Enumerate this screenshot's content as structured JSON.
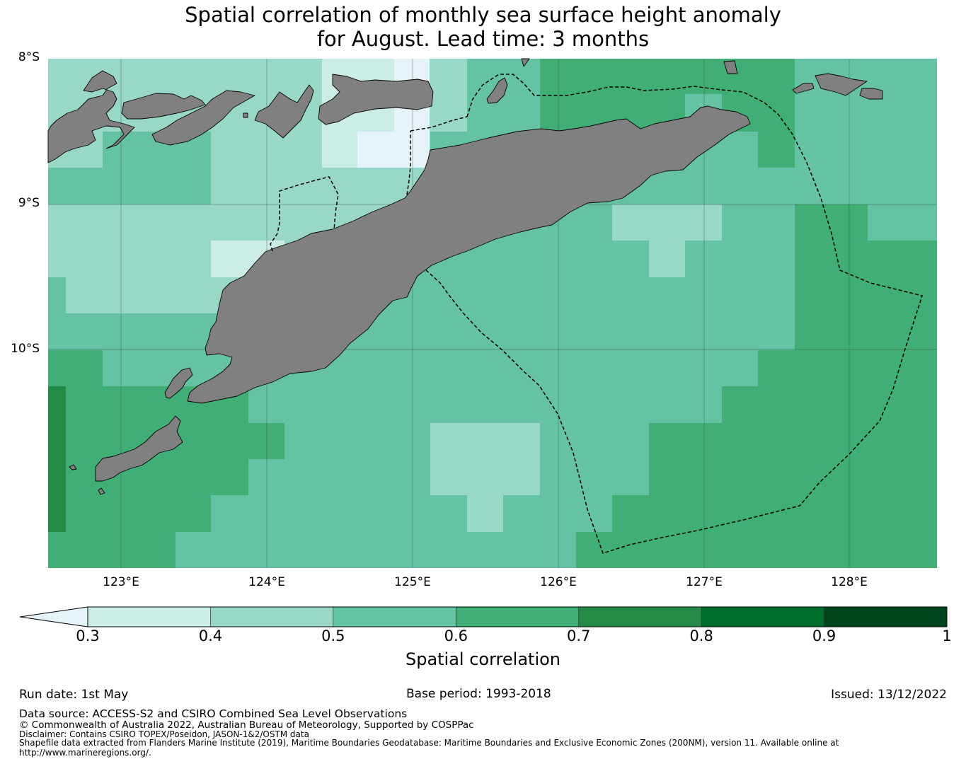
{
  "title": {
    "line1": "Spatial correlation of monthly sea surface height anomaly",
    "line2": "for August. Lead time: 3 months"
  },
  "map": {
    "latitude_labels": [
      "8°S",
      "9°S",
      "10°S"
    ],
    "longitude_labels": [
      "123°E",
      "124°E",
      "125°E",
      "126°E",
      "127°E",
      "128°E"
    ],
    "land_color": "#808080",
    "eez_boundary_style": "dashed black line"
  },
  "colorbar": {
    "ticks": [
      "0.3",
      "0.4",
      "0.5",
      "0.6",
      "0.7",
      "0.8",
      "0.9",
      "1"
    ],
    "label": "Spatial correlation",
    "under_color": "#e5f4f9",
    "colors": [
      "#ccece6",
      "#99d8c9",
      "#66c2a4",
      "#41ae76",
      "#238b45",
      "#006d2c",
      "#00441b"
    ]
  },
  "footer": {
    "run_date": "Run date: 1st May",
    "base_period": "Base period: 1993-2018",
    "issued": "Issued: 13/12/2022",
    "data_source": "Data source: ACCESS-S2 and CSIRO Combined Sea Level Observations",
    "copyright": "© Commonwealth of Australia 2022, Australian Bureau of Meteorology, Supported by COSPPac",
    "disclaimer": "Disclaimer: Contains CSIRO TOPEX/Poseidon, JASON-1&2/OSTM data",
    "shapefile_line1": "Shapefile data extracted from Flanders Marine Institute (2019), Maritime Boundaries Geodatabase: Maritime Boundaries and Exclusive Economic Zones (200NM), version 11. Available online at",
    "shapefile_line2": "http://www.marineregions.org/."
  }
}
